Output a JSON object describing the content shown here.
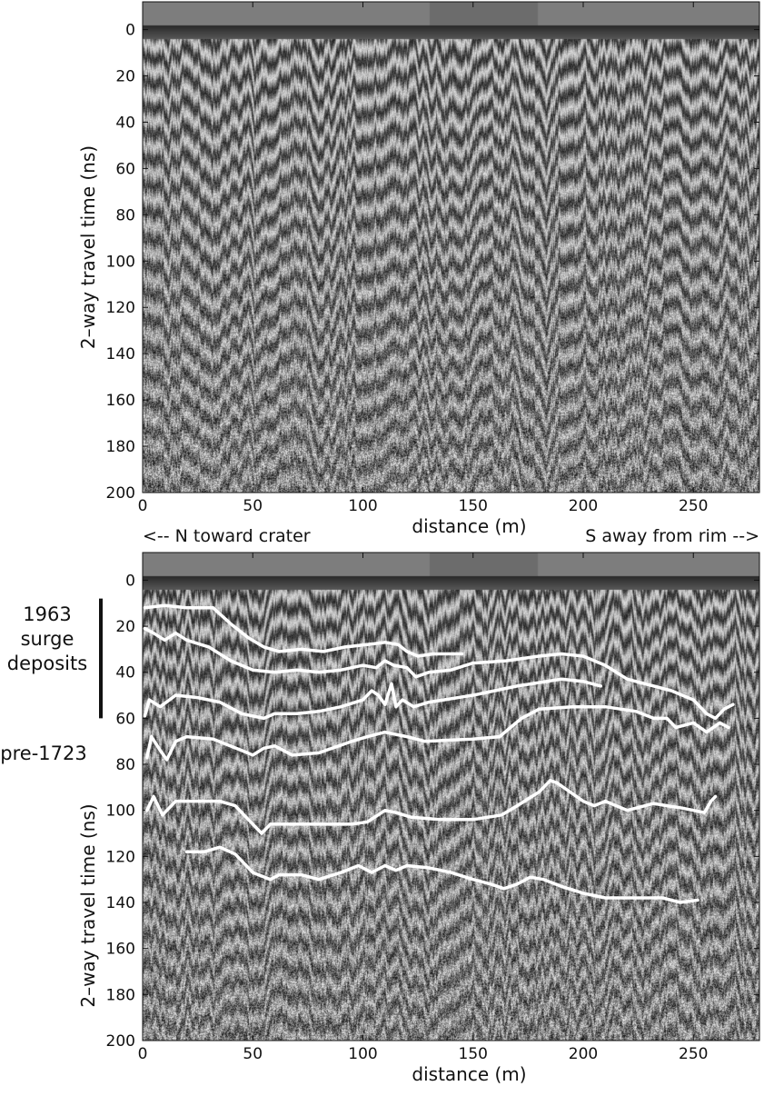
{
  "chart_data": [
    {
      "type": "heatmap",
      "panel": "top",
      "xlabel": "distance (m)",
      "ylabel": "2–way travel time (ns)",
      "xlim": [
        0,
        280
      ],
      "ylim": [
        200,
        -12
      ],
      "xticks": [
        0,
        50,
        100,
        150,
        200,
        250
      ],
      "yticks": [
        0,
        20,
        40,
        60,
        80,
        100,
        120,
        140,
        160,
        180,
        200
      ],
      "annotations": {
        "left": "<-- N toward crater",
        "right": "S away from rim -->"
      },
      "colormap": "grayscale radargram"
    },
    {
      "type": "heatmap",
      "panel": "bottom",
      "xlabel": "distance (m)",
      "ylabel": "2–way travel time (ns)",
      "xlim": [
        0,
        280
      ],
      "ylim": [
        200,
        -12
      ],
      "xticks": [
        0,
        50,
        100,
        150,
        200,
        250
      ],
      "yticks": [
        0,
        20,
        40,
        60,
        80,
        100,
        120,
        140,
        160,
        180,
        200
      ],
      "unit_labels": {
        "upper": [
          "1963",
          "surge",
          "deposits"
        ],
        "upper_range_ns": [
          8,
          60
        ],
        "lower": "pre-1723"
      },
      "line_color": "#ffffff",
      "horizons": [
        {
          "points": [
            [
              1,
              12
            ],
            [
              10,
              11
            ],
            [
              20,
              12
            ],
            [
              32,
              12
            ],
            [
              40,
              19
            ],
            [
              48,
              25
            ],
            [
              55,
              29
            ],
            [
              62,
              31
            ],
            [
              72,
              30
            ],
            [
              82,
              31
            ],
            [
              92,
              29
            ],
            [
              102,
              28
            ],
            [
              110,
              27
            ],
            [
              116,
              28
            ],
            [
              120,
              31
            ],
            [
              125,
              33
            ],
            [
              132,
              32
            ],
            [
              145,
              32
            ]
          ]
        },
        {
          "points": [
            [
              1,
              21
            ],
            [
              5,
              23
            ],
            [
              10,
              26
            ],
            [
              15,
              23
            ],
            [
              20,
              26
            ],
            [
              30,
              29
            ],
            [
              40,
              35
            ],
            [
              50,
              39
            ],
            [
              60,
              40
            ],
            [
              70,
              39
            ],
            [
              80,
              40
            ],
            [
              90,
              39
            ],
            [
              100,
              37
            ],
            [
              106,
              38
            ],
            [
              110,
              35
            ],
            [
              114,
              37
            ],
            [
              120,
              38
            ],
            [
              124,
              42
            ],
            [
              130,
              40
            ],
            [
              140,
              39
            ],
            [
              150,
              36
            ],
            [
              165,
              35
            ],
            [
              180,
              33
            ],
            [
              190,
              32
            ],
            [
              200,
              33
            ],
            [
              210,
              37
            ],
            [
              220,
              43
            ],
            [
              240,
              48
            ],
            [
              250,
              52
            ],
            [
              256,
              58
            ],
            [
              260,
              60
            ],
            [
              264,
              56
            ],
            [
              268,
              54
            ]
          ]
        },
        {
          "points": [
            [
              1,
              59
            ],
            [
              3,
              52
            ],
            [
              8,
              55
            ],
            [
              15,
              50
            ],
            [
              25,
              51
            ],
            [
              35,
              53
            ],
            [
              45,
              58
            ],
            [
              55,
              60
            ],
            [
              60,
              58
            ],
            [
              70,
              58
            ],
            [
              80,
              57
            ],
            [
              90,
              55
            ],
            [
              100,
              52
            ],
            [
              104,
              48
            ],
            [
              107,
              50
            ],
            [
              110,
              54
            ],
            [
              113,
              45
            ],
            [
              115,
              55
            ],
            [
              118,
              52
            ],
            [
              123,
              55
            ],
            [
              130,
              53
            ],
            [
              150,
              50
            ],
            [
              170,
              46
            ],
            [
              190,
              43
            ],
            [
              200,
              44
            ],
            [
              208,
              46
            ]
          ]
        },
        {
          "points": [
            [
              2,
              77
            ],
            [
              4,
              68
            ],
            [
              8,
              74
            ],
            [
              11,
              78
            ],
            [
              15,
              70
            ],
            [
              20,
              68
            ],
            [
              32,
              69
            ],
            [
              45,
              74
            ],
            [
              50,
              76
            ],
            [
              55,
              73
            ],
            [
              60,
              72
            ],
            [
              68,
              76
            ],
            [
              80,
              75
            ],
            [
              95,
              70
            ],
            [
              102,
              68
            ],
            [
              110,
              66
            ],
            [
              120,
              68
            ],
            [
              128,
              70
            ],
            [
              150,
              69
            ],
            [
              162,
              68
            ],
            [
              172,
              60
            ],
            [
              180,
              56
            ],
            [
              195,
              55
            ],
            [
              210,
              55
            ],
            [
              224,
              57
            ],
            [
              232,
              60
            ],
            [
              238,
              60
            ],
            [
              242,
              64
            ],
            [
              250,
              62
            ],
            [
              256,
              66
            ],
            [
              262,
              62
            ],
            [
              266,
              64
            ]
          ]
        },
        {
          "points": [
            [
              2,
              100
            ],
            [
              5,
              94
            ],
            [
              9,
              102
            ],
            [
              15,
              96
            ],
            [
              25,
              96
            ],
            [
              35,
              96
            ],
            [
              42,
              98
            ],
            [
              48,
              104
            ],
            [
              54,
              110
            ],
            [
              58,
              106
            ],
            [
              66,
              106
            ],
            [
              80,
              106
            ],
            [
              95,
              106
            ],
            [
              102,
              105
            ],
            [
              110,
              100
            ],
            [
              115,
              101
            ],
            [
              122,
              103
            ],
            [
              135,
              104
            ],
            [
              150,
              104
            ],
            [
              163,
              102
            ],
            [
              170,
              98
            ],
            [
              175,
              95
            ],
            [
              180,
              92
            ],
            [
              185,
              87
            ],
            [
              188,
              88
            ],
            [
              194,
              92
            ],
            [
              200,
              96
            ],
            [
              205,
              98
            ],
            [
              210,
              96
            ],
            [
              220,
              100
            ],
            [
              232,
              97
            ],
            [
              238,
              98
            ],
            [
              245,
              99
            ],
            [
              255,
              101
            ],
            [
              258,
              96
            ],
            [
              260,
              94
            ]
          ]
        },
        {
          "points": [
            [
              20,
              118
            ],
            [
              28,
              118
            ],
            [
              35,
              116
            ],
            [
              42,
              119
            ],
            [
              50,
              127
            ],
            [
              58,
              130
            ],
            [
              62,
              128
            ],
            [
              72,
              128
            ],
            [
              80,
              130
            ],
            [
              90,
              127
            ],
            [
              98,
              124
            ],
            [
              104,
              127
            ],
            [
              110,
              124
            ],
            [
              115,
              126
            ],
            [
              120,
              124
            ],
            [
              130,
              125
            ],
            [
              140,
              127
            ],
            [
              150,
              130
            ],
            [
              158,
              132
            ],
            [
              164,
              134
            ],
            [
              170,
              132
            ],
            [
              176,
              129
            ],
            [
              182,
              130
            ],
            [
              190,
              133
            ],
            [
              200,
              136
            ],
            [
              210,
              138
            ],
            [
              224,
              138
            ],
            [
              236,
              138
            ],
            [
              244,
              140
            ],
            [
              252,
              139
            ]
          ]
        }
      ]
    }
  ]
}
